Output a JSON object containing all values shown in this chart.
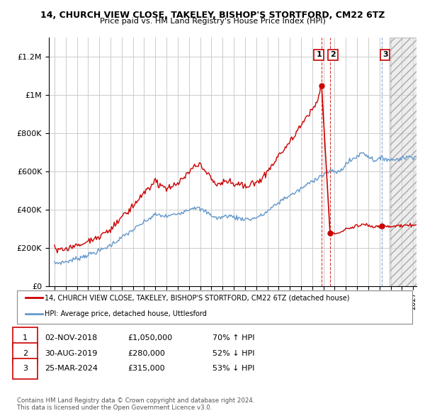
{
  "title_line1": "14, CHURCH VIEW CLOSE, TAKELEY, BISHOP'S STORTFORD, CM22 6TZ",
  "title_line2": "Price paid vs. HM Land Registry's House Price Index (HPI)",
  "hpi_color": "#6699cc",
  "price_color": "#cc0000",
  "background_color": "#ffffff",
  "plot_bg_color": "#ffffff",
  "grid_color": "#cccccc",
  "legend_line1": "14, CHURCH VIEW CLOSE, TAKELEY, BISHOP'S STORTFORD, CM22 6TZ (detached house)",
  "legend_line2": "HPI: Average price, detached house, Uttlesford",
  "transactions": [
    {
      "id": 1,
      "date": "02-NOV-2018",
      "price": "£1,050,000",
      "hpi_pct": "70% ↑ HPI",
      "year": 2018.833
    },
    {
      "id": 2,
      "date": "30-AUG-2019",
      "price": "£280,000",
      "hpi_pct": "52% ↓ HPI",
      "year": 2019.583
    },
    {
      "id": 3,
      "date": "25-MAR-2024",
      "price": "£315,000",
      "hpi_pct": "53% ↓ HPI",
      "year": 2024.208
    }
  ],
  "footer_line1": "Contains HM Land Registry data © Crown copyright and database right 2024.",
  "footer_line2": "This data is licensed under the Open Government Licence v3.0.",
  "ylim": [
    0,
    1300000
  ],
  "yticks": [
    0,
    200000,
    400000,
    600000,
    800000,
    1000000,
    1200000
  ],
  "xlim_min": 1994.5,
  "xlim_max": 2027.3,
  "future_start": 2024.9,
  "t1_price": 1050000,
  "t2_price": 280000,
  "t3_price": 315000
}
